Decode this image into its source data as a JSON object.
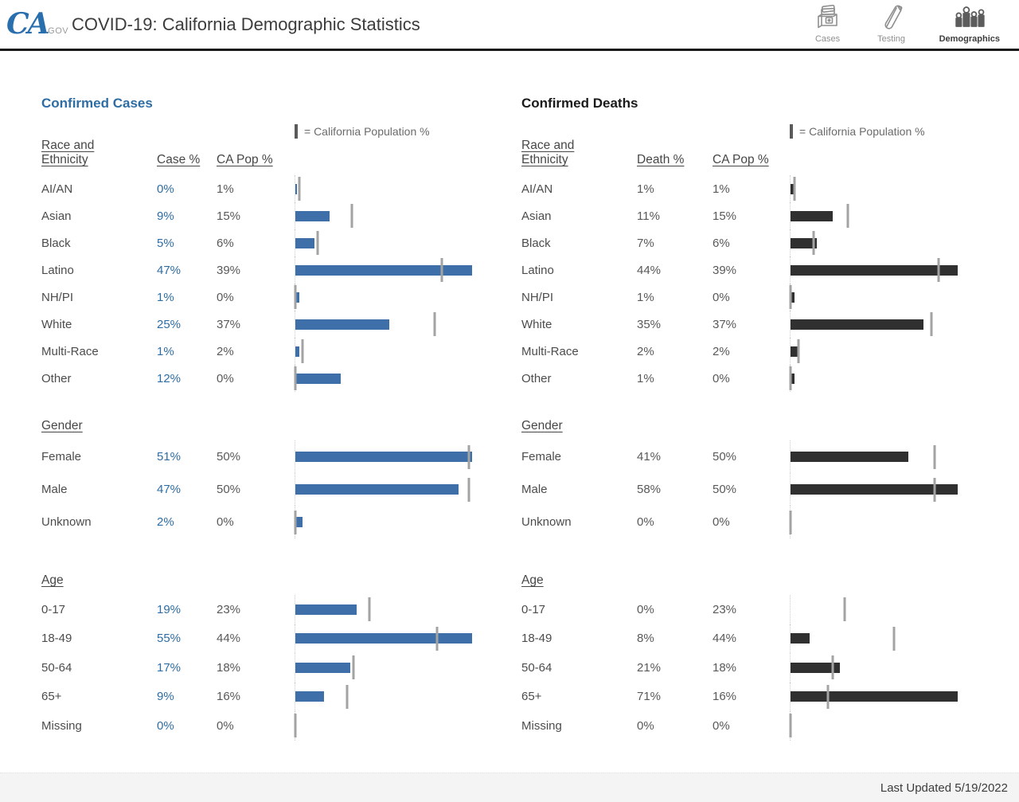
{
  "header": {
    "logo": {
      "ca": "CA",
      "gov": ".GOV"
    },
    "title": "COVID-19: California Demographic Statistics",
    "nav": [
      {
        "id": "cases",
        "label": "Cases",
        "icon": "cases-box-icon",
        "active": false
      },
      {
        "id": "testing",
        "label": "Testing",
        "icon": "test-tube-icon",
        "active": false
      },
      {
        "id": "demographics",
        "label": "Demographics",
        "icon": "people-bars-icon",
        "active": true
      }
    ]
  },
  "legend_label": "= California Population %",
  "colors": {
    "cases_bar": "#3e6fa8",
    "deaths_bar": "#303030",
    "accent_blue": "#2e6da4",
    "population_tick": "#a3a3a3"
  },
  "chart_data": [
    {
      "type": "bar",
      "title": "Confirmed Cases",
      "series": [
        {
          "name": "Case %",
          "group": "Race and Ethnicity",
          "categories": [
            "AI/AN",
            "Asian",
            "Black",
            "Latino",
            "NH/PI",
            "White",
            "Multi-Race",
            "Other"
          ],
          "values": [
            0,
            9,
            5,
            47,
            1,
            25,
            1,
            12
          ]
        },
        {
          "name": "CA Pop %",
          "group": "Race and Ethnicity",
          "categories": [
            "AI/AN",
            "Asian",
            "Black",
            "Latino",
            "NH/PI",
            "White",
            "Multi-Race",
            "Other"
          ],
          "values": [
            1,
            15,
            6,
            39,
            0,
            37,
            2,
            0
          ]
        },
        {
          "name": "Case %",
          "group": "Gender",
          "categories": [
            "Female",
            "Male",
            "Unknown"
          ],
          "values": [
            51,
            47,
            2
          ]
        },
        {
          "name": "CA Pop %",
          "group": "Gender",
          "categories": [
            "Female",
            "Male",
            "Unknown"
          ],
          "values": [
            50,
            50,
            0
          ]
        },
        {
          "name": "Case %",
          "group": "Age",
          "categories": [
            "0-17",
            "18-49",
            "50-64",
            "65+",
            "Missing"
          ],
          "values": [
            19,
            55,
            17,
            9,
            0
          ]
        },
        {
          "name": "CA Pop %",
          "group": "Age",
          "categories": [
            "0-17",
            "18-49",
            "50-64",
            "65+",
            "Missing"
          ],
          "values": [
            23,
            44,
            18,
            16,
            0
          ]
        }
      ]
    },
    {
      "type": "bar",
      "title": "Confirmed Deaths",
      "series": [
        {
          "name": "Death %",
          "group": "Race and Ethnicity",
          "categories": [
            "AI/AN",
            "Asian",
            "Black",
            "Latino",
            "NH/PI",
            "White",
            "Multi-Race",
            "Other"
          ],
          "values": [
            1,
            11,
            7,
            44,
            1,
            35,
            2,
            1
          ]
        },
        {
          "name": "CA Pop %",
          "group": "Race and Ethnicity",
          "categories": [
            "AI/AN",
            "Asian",
            "Black",
            "Latino",
            "NH/PI",
            "White",
            "Multi-Race",
            "Other"
          ],
          "values": [
            1,
            15,
            6,
            39,
            0,
            37,
            2,
            0
          ]
        },
        {
          "name": "Death %",
          "group": "Gender",
          "categories": [
            "Female",
            "Male",
            "Unknown"
          ],
          "values": [
            41,
            58,
            0
          ]
        },
        {
          "name": "CA Pop %",
          "group": "Gender",
          "categories": [
            "Female",
            "Male",
            "Unknown"
          ],
          "values": [
            50,
            50,
            0
          ]
        },
        {
          "name": "Death %",
          "group": "Age",
          "categories": [
            "0-17",
            "18-49",
            "50-64",
            "65+",
            "Missing"
          ],
          "values": [
            0,
            8,
            21,
            71,
            0
          ]
        },
        {
          "name": "CA Pop %",
          "group": "Age",
          "categories": [
            "0-17",
            "18-49",
            "50-64",
            "65+",
            "Missing"
          ],
          "values": [
            23,
            44,
            18,
            16,
            0
          ]
        }
      ]
    }
  ],
  "panels": [
    {
      "id": "cases",
      "title": "Confirmed Cases",
      "value_header": "Case %",
      "pop_header": "CA Pop %",
      "groups": [
        {
          "id": "race",
          "title": "Race and Ethnicity",
          "title_lines": [
            "Race and",
            "Ethnicity"
          ],
          "rows": [
            {
              "label": "AI/AN",
              "value": "0%",
              "value_num": 0,
              "bar_num": 0.5,
              "pop": "1%",
              "pop_num": 1
            },
            {
              "label": "Asian",
              "value": "9%",
              "value_num": 9,
              "pop": "15%",
              "pop_num": 15
            },
            {
              "label": "Black",
              "value": "5%",
              "value_num": 5,
              "pop": "6%",
              "pop_num": 6
            },
            {
              "label": "Latino",
              "value": "47%",
              "value_num": 47,
              "pop": "39%",
              "pop_num": 39
            },
            {
              "label": "NH/PI",
              "value": "1%",
              "value_num": 1,
              "pop": "0%",
              "pop_num": 0
            },
            {
              "label": "White",
              "value": "25%",
              "value_num": 25,
              "pop": "37%",
              "pop_num": 37
            },
            {
              "label": "Multi-Race",
              "value": "1%",
              "value_num": 1,
              "pop": "2%",
              "pop_num": 2
            },
            {
              "label": "Other",
              "value": "12%",
              "value_num": 12,
              "pop": "0%",
              "pop_num": 0
            }
          ]
        },
        {
          "id": "gender",
          "title": "Gender",
          "rows": [
            {
              "label": "Female",
              "value": "51%",
              "value_num": 51,
              "pop": "50%",
              "pop_num": 50
            },
            {
              "label": "Male",
              "value": "47%",
              "value_num": 47,
              "pop": "50%",
              "pop_num": 50
            },
            {
              "label": "Unknown",
              "value": "2%",
              "value_num": 2,
              "pop": "0%",
              "pop_num": 0
            }
          ]
        },
        {
          "id": "age",
          "title": "Age",
          "rows": [
            {
              "label": "0-17",
              "value": "19%",
              "value_num": 19,
              "pop": "23%",
              "pop_num": 23
            },
            {
              "label": "18-49",
              "value": "55%",
              "value_num": 55,
              "pop": "44%",
              "pop_num": 44
            },
            {
              "label": "50-64",
              "value": "17%",
              "value_num": 17,
              "pop": "18%",
              "pop_num": 18
            },
            {
              "label": "65+",
              "value": "9%",
              "value_num": 9,
              "pop": "16%",
              "pop_num": 16
            },
            {
              "label": "Missing",
              "value": "0%",
              "value_num": 0,
              "pop": "0%",
              "pop_num": 0
            }
          ]
        }
      ]
    },
    {
      "id": "deaths",
      "title": "Confirmed Deaths",
      "value_header": "Death %",
      "pop_header": "CA Pop %",
      "groups": [
        {
          "id": "race",
          "title": "Race and Ethnicity",
          "title_lines": [
            "Race and",
            "Ethnicity"
          ],
          "rows": [
            {
              "label": "AI/AN",
              "value": "1%",
              "value_num": 1,
              "pop": "1%",
              "pop_num": 1
            },
            {
              "label": "Asian",
              "value": "11%",
              "value_num": 11,
              "pop": "15%",
              "pop_num": 15
            },
            {
              "label": "Black",
              "value": "7%",
              "value_num": 7,
              "pop": "6%",
              "pop_num": 6
            },
            {
              "label": "Latino",
              "value": "44%",
              "value_num": 44,
              "pop": "39%",
              "pop_num": 39
            },
            {
              "label": "NH/PI",
              "value": "1%",
              "value_num": 1,
              "pop": "0%",
              "pop_num": 0
            },
            {
              "label": "White",
              "value": "35%",
              "value_num": 35,
              "pop": "37%",
              "pop_num": 37
            },
            {
              "label": "Multi-Race",
              "value": "2%",
              "value_num": 2,
              "pop": "2%",
              "pop_num": 2
            },
            {
              "label": "Other",
              "value": "1%",
              "value_num": 1,
              "pop": "0%",
              "pop_num": 0
            }
          ]
        },
        {
          "id": "gender",
          "title": "Gender",
          "rows": [
            {
              "label": "Female",
              "value": "41%",
              "value_num": 41,
              "pop": "50%",
              "pop_num": 50
            },
            {
              "label": "Male",
              "value": "58%",
              "value_num": 58,
              "pop": "50%",
              "pop_num": 50
            },
            {
              "label": "Unknown",
              "value": "0%",
              "value_num": 0,
              "pop": "0%",
              "pop_num": 0
            }
          ]
        },
        {
          "id": "age",
          "title": "Age",
          "rows": [
            {
              "label": "0-17",
              "value": "0%",
              "value_num": 0,
              "pop": "23%",
              "pop_num": 23
            },
            {
              "label": "18-49",
              "value": "8%",
              "value_num": 8,
              "pop": "44%",
              "pop_num": 44
            },
            {
              "label": "50-64",
              "value": "21%",
              "value_num": 21,
              "pop": "18%",
              "pop_num": 18
            },
            {
              "label": "65+",
              "value": "71%",
              "value_num": 71,
              "pop": "16%",
              "pop_num": 16
            },
            {
              "label": "Missing",
              "value": "0%",
              "value_num": 0,
              "pop": "0%",
              "pop_num": 0
            }
          ]
        }
      ]
    }
  ],
  "footer": {
    "last_updated": "Last Updated 5/19/2022"
  }
}
